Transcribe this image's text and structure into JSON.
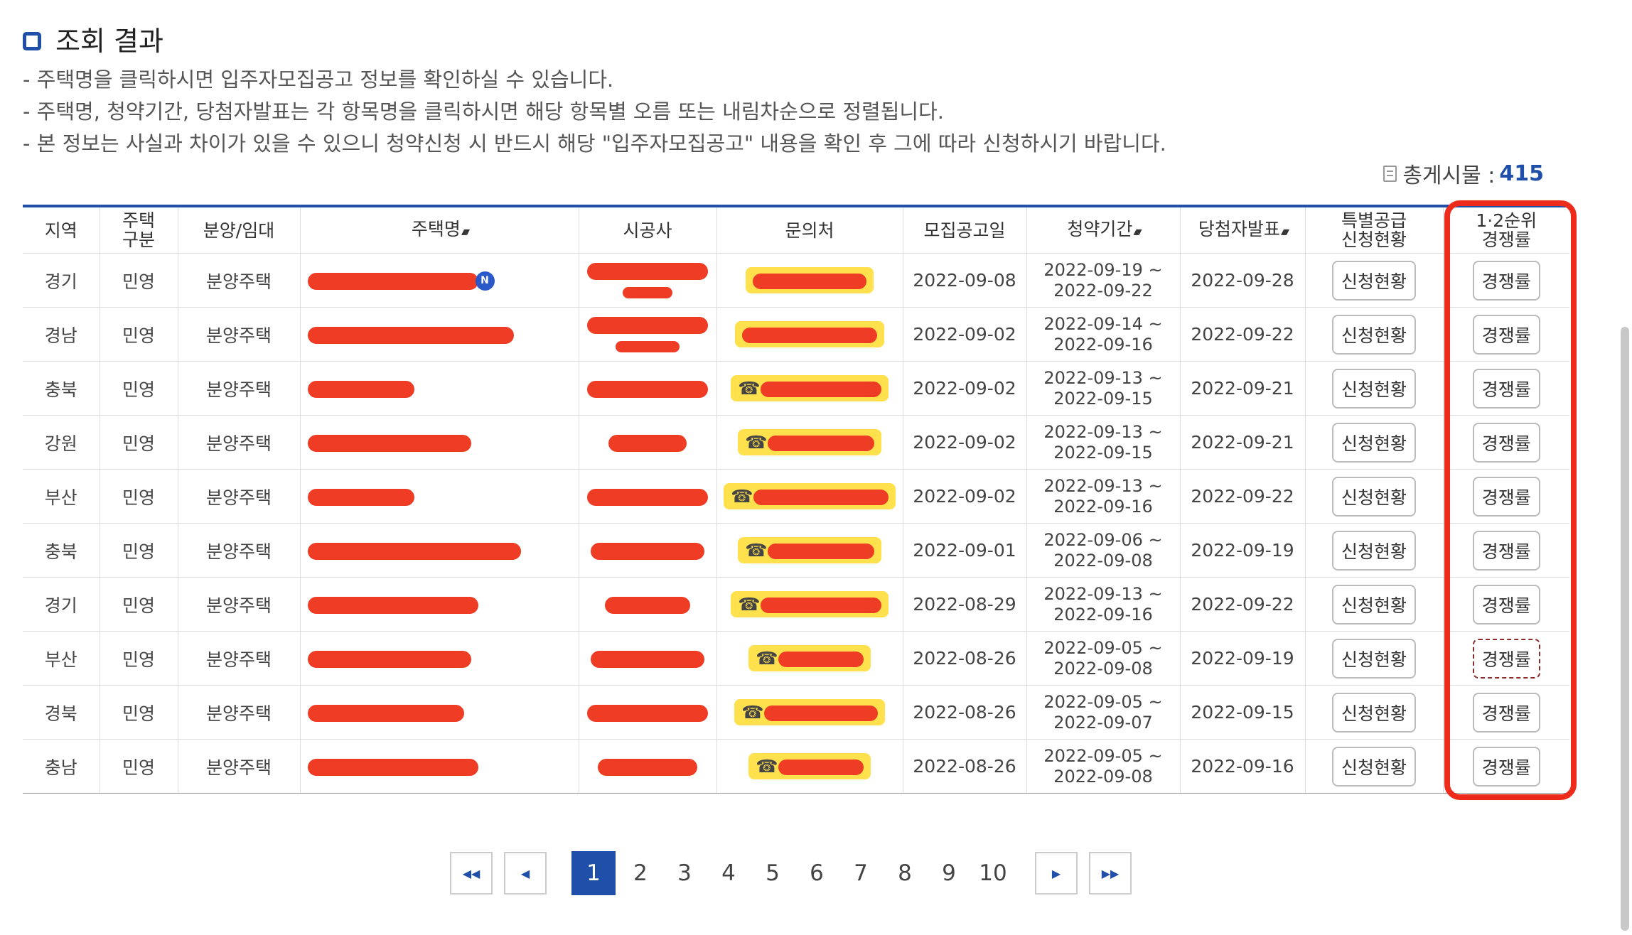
{
  "section": {
    "title": "조회 결과"
  },
  "notes": [
    "- 주택명을 클릭하시면 입주자모집공고 정보를 확인하실 수 있습니다.",
    "- 주택명, 청약기간, 당첨자발표는 각 항목명을 클릭하시면 해당 항목별 오름 또는 내림차순으로 정렬됩니다.",
    "- 본 정보는 사실과 차이가 있을 수 있으니 청약신청 시 반드시 해당 \"입주자모집공고\" 내용을 확인 후 그에 따라 신청하시기 바랍니다."
  ],
  "total": {
    "label": "총게시물 :",
    "value": "415"
  },
  "table": {
    "headers": {
      "region": "지역",
      "type_l1": "주택",
      "type_l2": "구분",
      "sale": "분양/임대",
      "name": "주택명",
      "builder": "시공사",
      "contact": "문의처",
      "notice": "모집공고일",
      "period": "청약기간",
      "winner": "당첨자발표",
      "special_l1": "특별공급",
      "special_l2": "신청현황",
      "rank_l1": "1·2순위",
      "rank_l2": "경쟁률"
    },
    "rows": [
      {
        "region": "경기",
        "type": "민영",
        "sale": "분양주택",
        "notice": "2022-09-08",
        "start": "2022-09-19 ~",
        "end": "2022-09-22",
        "winner": "2022-09-28",
        "status_btn": "신청현황",
        "rate_btn": "경쟁률"
      },
      {
        "region": "경남",
        "type": "민영",
        "sale": "분양주택",
        "notice": "2022-09-02",
        "start": "2022-09-14 ~",
        "end": "2022-09-16",
        "winner": "2022-09-22",
        "status_btn": "신청현황",
        "rate_btn": "경쟁률"
      },
      {
        "region": "충북",
        "type": "민영",
        "sale": "분양주택",
        "notice": "2022-09-02",
        "start": "2022-09-13 ~",
        "end": "2022-09-15",
        "winner": "2022-09-21",
        "status_btn": "신청현황",
        "rate_btn": "경쟁률"
      },
      {
        "region": "강원",
        "type": "민영",
        "sale": "분양주택",
        "notice": "2022-09-02",
        "start": "2022-09-13 ~",
        "end": "2022-09-15",
        "winner": "2022-09-21",
        "status_btn": "신청현황",
        "rate_btn": "경쟁률"
      },
      {
        "region": "부산",
        "type": "민영",
        "sale": "분양주택",
        "notice": "2022-09-02",
        "start": "2022-09-13 ~",
        "end": "2022-09-16",
        "winner": "2022-09-22",
        "status_btn": "신청현황",
        "rate_btn": "경쟁률"
      },
      {
        "region": "충북",
        "type": "민영",
        "sale": "분양주택",
        "notice": "2022-09-01",
        "start": "2022-09-06 ~",
        "end": "2022-09-08",
        "winner": "2022-09-19",
        "status_btn": "신청현황",
        "rate_btn": "경쟁률"
      },
      {
        "region": "경기",
        "type": "민영",
        "sale": "분양주택",
        "notice": "2022-08-29",
        "start": "2022-09-13 ~",
        "end": "2022-09-16",
        "winner": "2022-09-22",
        "status_btn": "신청현황",
        "rate_btn": "경쟁률"
      },
      {
        "region": "부산",
        "type": "민영",
        "sale": "분양주택",
        "notice": "2022-08-26",
        "start": "2022-09-05 ~",
        "end": "2022-09-08",
        "winner": "2022-09-19",
        "status_btn": "신청현황",
        "rate_btn": "경쟁률"
      },
      {
        "region": "경북",
        "type": "민영",
        "sale": "분양주택",
        "notice": "2022-08-26",
        "start": "2022-09-05 ~",
        "end": "2022-09-07",
        "winner": "2022-09-15",
        "status_btn": "신청현황",
        "rate_btn": "경쟁률"
      },
      {
        "region": "충남",
        "type": "민영",
        "sale": "분양주택",
        "notice": "2022-08-26",
        "start": "2022-09-05 ~",
        "end": "2022-09-08",
        "winner": "2022-09-16",
        "status_btn": "신청현황",
        "rate_btn": "경쟁률"
      }
    ],
    "new_badge": "N",
    "phone_icon": "☎",
    "focused_rate_row": 7
  },
  "pagination": {
    "first_icon": "double-chevron-left-icon",
    "prev_icon": "chevron-left-icon",
    "next_icon": "chevron-right-icon",
    "last_icon": "double-chevron-right-icon",
    "pages": [
      "1",
      "2",
      "3",
      "4",
      "5",
      "6",
      "7",
      "8",
      "9",
      "10"
    ],
    "current": "1"
  },
  "colors": {
    "accent": "#1f4fa8",
    "redaction": "#ee3c25",
    "highlight": "#ee2a1b",
    "phone_bg": "#ffe04d"
  }
}
